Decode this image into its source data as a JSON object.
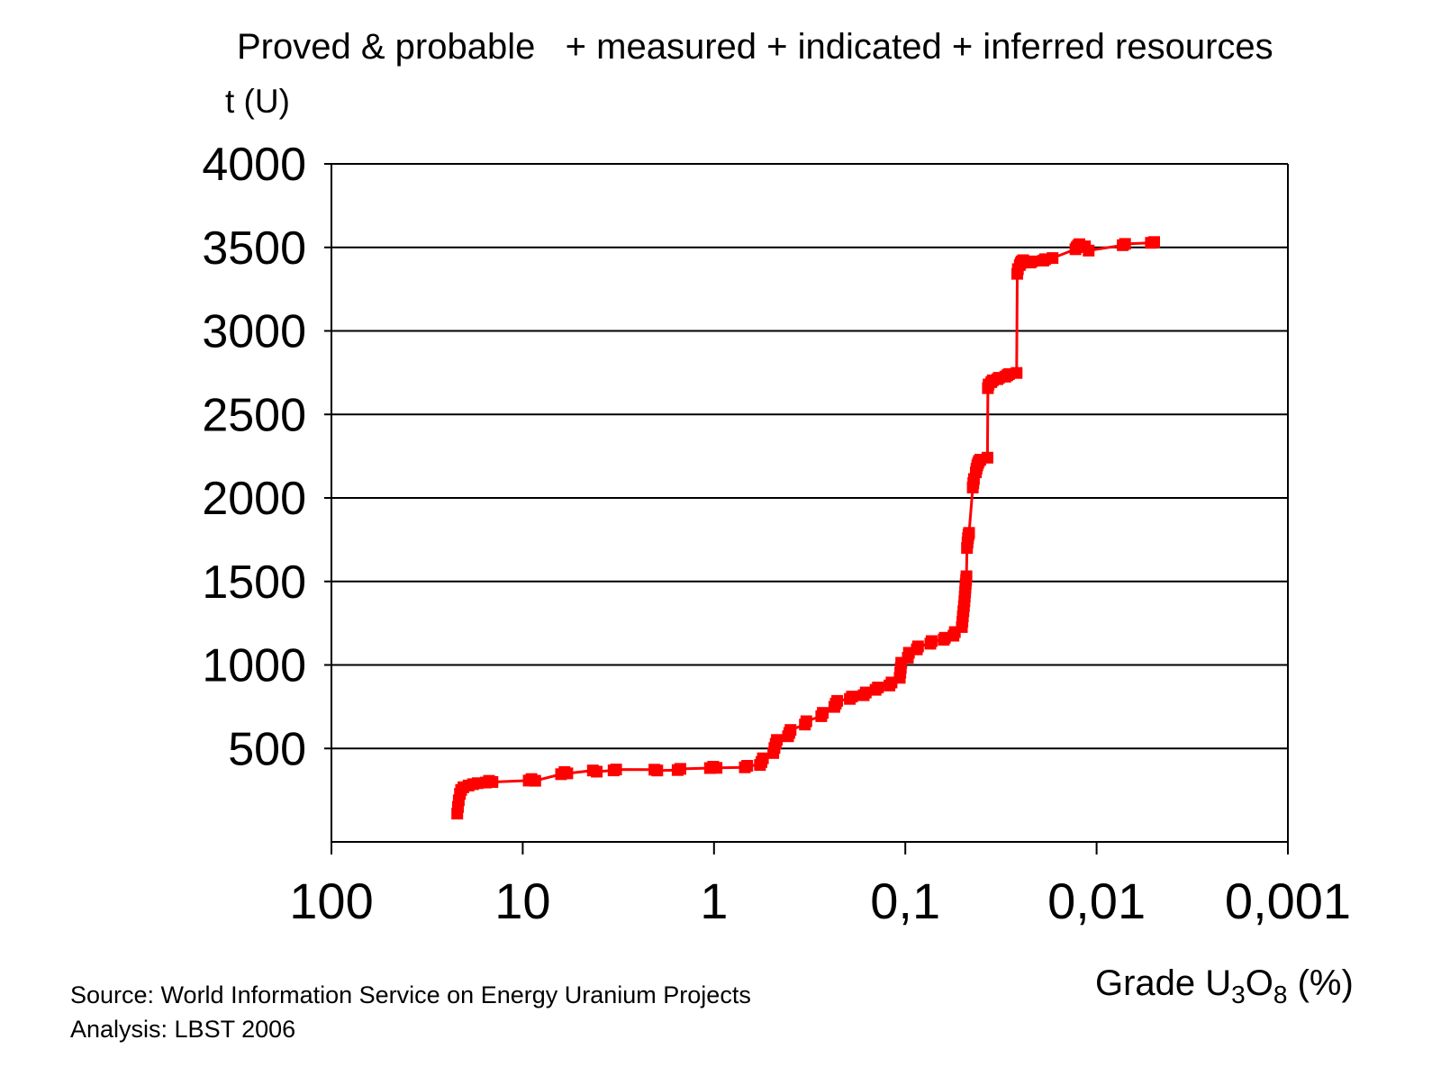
{
  "page": {
    "background": "#ffffff"
  },
  "chart_data": {
    "type": "line",
    "title": "Proved & probable   + measured + indicated + inferred resources",
    "x_axis": {
      "label": "Grade U3O8 (%)",
      "label_parts": {
        "pre": "Grade U",
        "sub1": "3",
        "mid": "O",
        "sub2": "8",
        "post": " (%)"
      },
      "scale": "log10-reversed",
      "range": [
        100,
        0.001
      ],
      "ticks": [
        {
          "value": 100,
          "label": "100"
        },
        {
          "value": 10,
          "label": "10"
        },
        {
          "value": 1,
          "label": "1"
        },
        {
          "value": 0.1,
          "label": "0,1"
        },
        {
          "value": 0.01,
          "label": "0,01"
        },
        {
          "value": 0.001,
          "label": "0,001"
        }
      ]
    },
    "y_axis": {
      "title": "t (U)",
      "range": [
        0,
        4000
      ],
      "ticks": [
        4000,
        3500,
        3000,
        2500,
        2000,
        1500,
        1000,
        500
      ],
      "gridlines": true
    },
    "series": [
      {
        "color": "#ff0000",
        "marker": "square",
        "marker_size": 13,
        "line_width": 3,
        "points": [
          [
            22.0,
            110
          ],
          [
            21.8,
            150
          ],
          [
            21.6,
            190
          ],
          [
            21.3,
            228
          ],
          [
            21.0,
            252
          ],
          [
            20.4,
            268
          ],
          [
            19.2,
            278
          ],
          [
            18.2,
            286
          ],
          [
            17.2,
            292
          ],
          [
            15.6,
            296
          ],
          [
            15.0,
            306
          ],
          [
            14.4,
            299
          ],
          [
            9.3,
            308
          ],
          [
            9.0,
            317
          ],
          [
            8.6,
            307
          ],
          [
            6.3,
            346
          ],
          [
            6.05,
            359
          ],
          [
            5.85,
            351
          ],
          [
            4.3,
            368
          ],
          [
            4.1,
            361
          ],
          [
            3.35,
            369
          ],
          [
            3.25,
            374
          ],
          [
            2.05,
            373
          ],
          [
            1.98,
            368
          ],
          [
            1.55,
            371
          ],
          [
            1.5,
            378
          ],
          [
            1.05,
            383
          ],
          [
            1.01,
            391
          ],
          [
            0.97,
            384
          ],
          [
            0.69,
            387
          ],
          [
            0.67,
            396
          ],
          [
            0.575,
            401
          ],
          [
            0.565,
            419
          ],
          [
            0.555,
            441
          ],
          [
            0.49,
            473
          ],
          [
            0.483,
            503
          ],
          [
            0.476,
            528
          ],
          [
            0.469,
            551
          ],
          [
            0.41,
            573
          ],
          [
            0.404,
            593
          ],
          [
            0.398,
            611
          ],
          [
            0.335,
            643
          ],
          [
            0.329,
            663
          ],
          [
            0.275,
            693
          ],
          [
            0.27,
            713
          ],
          [
            0.235,
            749
          ],
          [
            0.231,
            769
          ],
          [
            0.227,
            785
          ],
          [
            0.195,
            797
          ],
          [
            0.19,
            811
          ],
          [
            0.165,
            819
          ],
          [
            0.161,
            835
          ],
          [
            0.143,
            851
          ],
          [
            0.139,
            865
          ],
          [
            0.121,
            877
          ],
          [
            0.118,
            895
          ],
          [
            0.107,
            923
          ],
          [
            0.1063,
            953
          ],
          [
            0.1056,
            983
          ],
          [
            0.105,
            1013
          ],
          [
            0.097,
            1043
          ],
          [
            0.0958,
            1073
          ],
          [
            0.087,
            1093
          ],
          [
            0.0858,
            1111
          ],
          [
            0.074,
            1127
          ],
          [
            0.0729,
            1143
          ],
          [
            0.063,
            1151
          ],
          [
            0.0621,
            1163
          ],
          [
            0.056,
            1175
          ],
          [
            0.0551,
            1197
          ],
          [
            0.0506,
            1227
          ],
          [
            0.0503,
            1259
          ],
          [
            0.05,
            1291
          ],
          [
            0.0497,
            1322
          ],
          [
            0.0494,
            1352
          ],
          [
            0.0491,
            1381
          ],
          [
            0.0489,
            1409
          ],
          [
            0.0487,
            1436
          ],
          [
            0.0485,
            1461
          ],
          [
            0.0483,
            1486
          ],
          [
            0.0481,
            1509
          ],
          [
            0.0479,
            1531
          ],
          [
            0.0476,
            1700
          ],
          [
            0.0473,
            1733
          ],
          [
            0.047,
            1759
          ],
          [
            0.0467,
            1779
          ],
          [
            0.0464,
            1791
          ],
          [
            0.0444,
            2062
          ],
          [
            0.0441,
            2089
          ],
          [
            0.0438,
            2113
          ],
          [
            0.0428,
            2153
          ],
          [
            0.0424,
            2176
          ],
          [
            0.042,
            2195
          ],
          [
            0.0416,
            2209
          ],
          [
            0.0412,
            2221
          ],
          [
            0.0405,
            2229
          ],
          [
            0.0372,
            2241
          ],
          [
            0.037,
            2657
          ],
          [
            0.0367,
            2679
          ],
          [
            0.0355,
            2693
          ],
          [
            0.0349,
            2704
          ],
          [
            0.033,
            2711
          ],
          [
            0.0324,
            2719
          ],
          [
            0.03,
            2726
          ],
          [
            0.0293,
            2734
          ],
          [
            0.0287,
            2741
          ],
          [
            0.0262,
            2748
          ],
          [
            0.026,
            3342
          ],
          [
            0.0258,
            3370
          ],
          [
            0.0252,
            3394
          ],
          [
            0.0249,
            3407
          ],
          [
            0.0246,
            3416
          ],
          [
            0.0242,
            3423
          ],
          [
            0.0222,
            3409
          ],
          [
            0.0218,
            3416
          ],
          [
            0.019,
            3421
          ],
          [
            0.0186,
            3429
          ],
          [
            0.017,
            3436
          ],
          [
            0.0129,
            3489
          ],
          [
            0.0127,
            3501
          ],
          [
            0.0125,
            3511
          ],
          [
            0.0123,
            3519
          ],
          [
            0.0115,
            3506
          ],
          [
            0.011,
            3481
          ],
          [
            0.0073,
            3513
          ],
          [
            0.0071,
            3521
          ],
          [
            0.0052,
            3527
          ],
          [
            0.005,
            3532
          ]
        ]
      }
    ]
  },
  "footer": {
    "source": "Source: World Information Service on Energy Uranium Projects",
    "analysis": "Analysis: LBST 2006"
  }
}
